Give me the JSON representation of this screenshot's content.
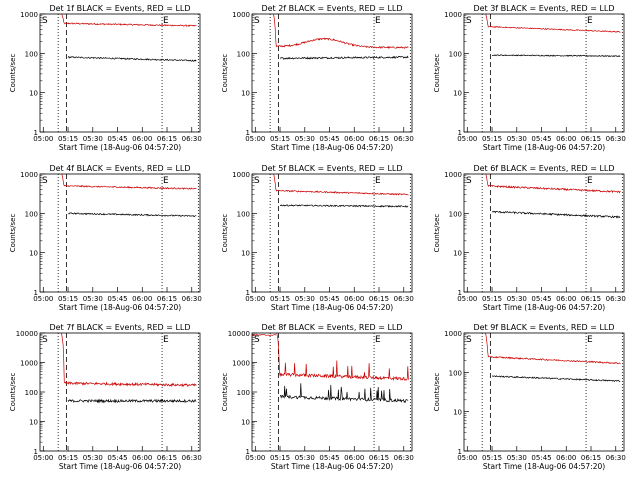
{
  "chart_data": {
    "type": "line",
    "layout": "3x3 grid",
    "yscale": "log",
    "ylabel": "Counts/sec",
    "xlabel": "Start Time (18-Aug-06 04:57:20)",
    "x_tick_labels": [
      "05:00",
      "05:15",
      "05:30",
      "05:45",
      "06:00",
      "06:15",
      "06:30"
    ],
    "y_tick_labels": [
      "1",
      "10",
      "100",
      "1000",
      "10000"
    ],
    "series_colors": {
      "events": "#000000",
      "lld": "#cc0000"
    },
    "marker_S": "S",
    "marker_E": "E",
    "panels": [
      {
        "title": "Det 1f BLACK = Events, RED = LLD",
        "ylim": [
          1,
          1000
        ],
        "events": 80,
        "lld": 580,
        "events_end": 65,
        "lld_end": 500,
        "noise": 0.04
      },
      {
        "title": "Det 2f BLACK = Events, RED = LLD",
        "ylim": [
          1,
          1000
        ],
        "events": 75,
        "lld": 150,
        "events_end": 80,
        "lld_end": 140,
        "bump": 1.6,
        "noise": 0.05
      },
      {
        "title": "Det 3f BLACK = Events, RED = LLD",
        "ylim": [
          1,
          1000
        ],
        "events": 90,
        "lld": 480,
        "events_end": 85,
        "lld_end": 350,
        "noise": 0.03
      },
      {
        "title": "Det 4f BLACK = Events, RED = LLD",
        "ylim": [
          1,
          1000
        ],
        "events": 100,
        "lld": 500,
        "events_end": 85,
        "lld_end": 420,
        "noise": 0.04
      },
      {
        "title": "Det 5f BLACK = Events, RED = LLD",
        "ylim": [
          1,
          1000
        ],
        "events": 160,
        "lld": 380,
        "events_end": 150,
        "lld_end": 300,
        "noise": 0.04
      },
      {
        "title": "Det 6f BLACK = Events, RED = LLD",
        "ylim": [
          1,
          1000
        ],
        "events": 110,
        "lld": 500,
        "events_end": 80,
        "lld_end": 350,
        "noise": 0.05
      },
      {
        "title": "Det 7f BLACK = Events, RED = LLD",
        "ylim": [
          1,
          10000
        ],
        "events": 50,
        "lld": 200,
        "events_end": 50,
        "lld_end": 170,
        "noise": 0.1
      },
      {
        "title": "Det 8f BLACK = Events, RED = LLD",
        "ylim": [
          1,
          10000
        ],
        "events": 70,
        "lld": 400,
        "events_end": 50,
        "lld_end": 280,
        "spiky": true,
        "noise": 0.12
      },
      {
        "title": "Det 9f BLACK = Events, RED = LLD",
        "ylim": [
          1,
          1000
        ],
        "events": 80,
        "lld": 250,
        "events_end": 60,
        "lld_end": 170,
        "noise": 0.04
      }
    ]
  }
}
